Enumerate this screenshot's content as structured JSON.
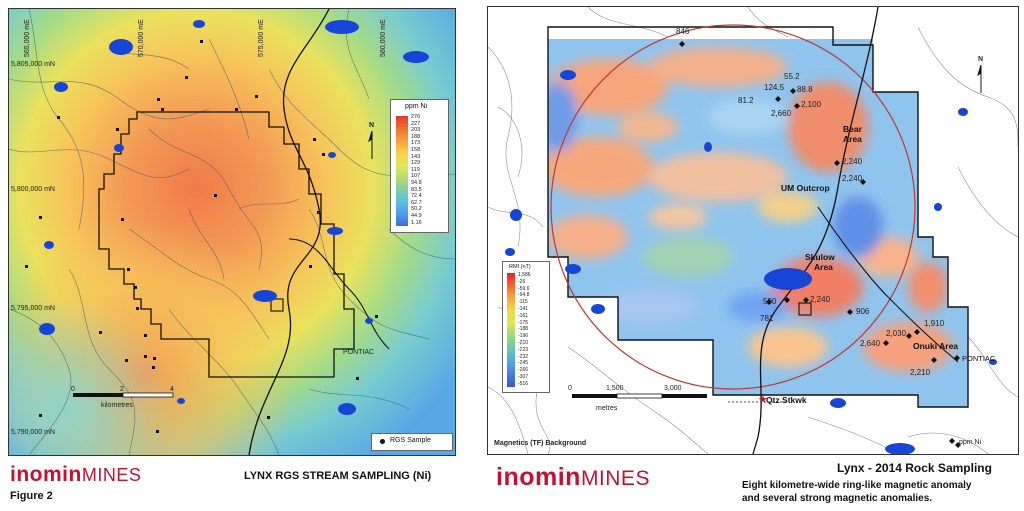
{
  "left": {
    "company_logo": {
      "part1": "inomin",
      "part2": "MINES"
    },
    "figure_label": "Figure 2",
    "title": "LYNX RGS STREAM SAMPLING (Ni)",
    "grid_east": [
      "565,000 mE",
      "570,000 mE",
      "575,000 mE",
      "580,000 mE"
    ],
    "grid_north": [
      "5,805,000 mN",
      "5,800,000 mN",
      "5,795,000 mN",
      "5,790,000 mN"
    ],
    "place_labels": [
      "PONTIAC"
    ],
    "scale": {
      "ticks": [
        "0",
        "2",
        "4"
      ],
      "unit": "kilometres"
    },
    "north_label": "N",
    "legend": {
      "title": "ppm Ni",
      "values": [
        "276",
        "227",
        "203",
        "188",
        "173",
        "158",
        "143",
        "129",
        "119",
        "107",
        "94.8",
        "83.5",
        "72.4",
        "62.7",
        "50.2",
        "44.9",
        "1.16"
      ]
    },
    "sample_legend": "RGS Sample"
  },
  "right": {
    "company_logo": {
      "part1": "inomin",
      "part2": "MINES"
    },
    "title": "Lynx - 2014 Rock Sampling",
    "subtitle_line1": "Eight kilometre-wide ring-like magnetic anomaly",
    "subtitle_line2": "and several strong magnetic anomalies.",
    "background_label": "Magnetics (TF) Background",
    "sample_legend": "ppm Ni",
    "north_label": "N",
    "scale": {
      "ticks": [
        "0",
        "1,500",
        "3,000"
      ],
      "unit": "metres"
    },
    "area_labels": {
      "bear": [
        "Bear",
        "Area"
      ],
      "um": "UM Outcrop",
      "skulow": [
        "Skulow",
        "Area"
      ],
      "onuki": "Onuki Area",
      "qtz": "Qtz Stkwk",
      "pontiac": "PONTIAC"
    },
    "sample_values": [
      "846",
      "55.2",
      "124.5",
      "88.8",
      "81.2",
      "2,100",
      "2,660",
      "2,240",
      "2,240",
      "2,240",
      "590",
      "781",
      "906",
      "1,910",
      "2,030",
      "2,640",
      "2,210"
    ],
    "mag_legend": {
      "title": "RMI (nT)",
      "values": [
        "1,586",
        "-26",
        "-59.6",
        "-94.8",
        "-115",
        "-141",
        "-161",
        "-175",
        "-188",
        "-196",
        "-210",
        "-223",
        "-232",
        "-245",
        "-266",
        "-307",
        "-516"
      ]
    }
  },
  "colors": {
    "brand_red": "#c8102e",
    "lake_blue": "#1746d6",
    "boundary": "#111111",
    "ring": "#c0392b"
  }
}
